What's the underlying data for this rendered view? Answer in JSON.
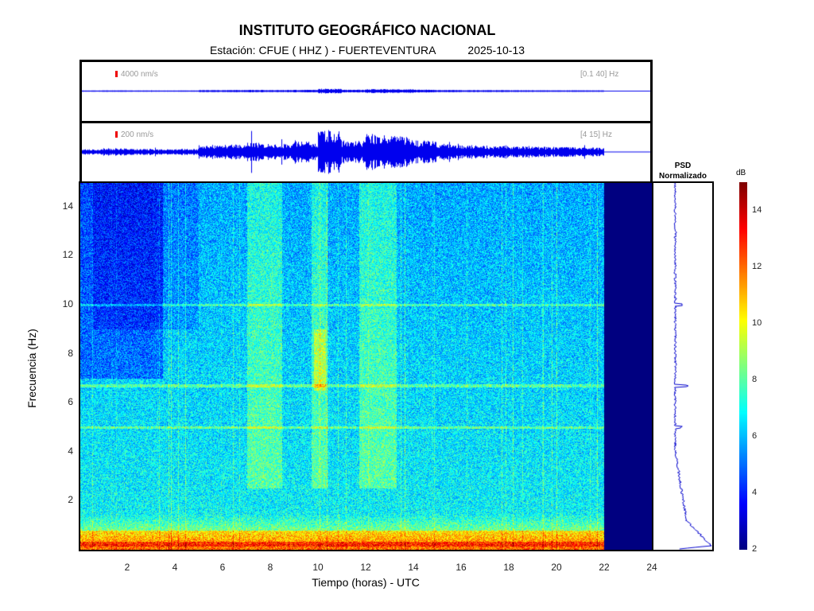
{
  "header": {
    "title": "INSTITUTO GEOGRÁFICO NACIONAL",
    "station_label": "Estación:  CFUE ( HHZ ) - FUERTEVENTURA",
    "date": "2025-10-13"
  },
  "traces": [
    {
      "scale": "4000 nm/s",
      "band": "[0.1 40] Hz"
    },
    {
      "scale": "200 nm/s",
      "band": "[4 15] Hz"
    }
  ],
  "psd": {
    "title_line1": "PSD",
    "title_line2": "Normalizado"
  },
  "colorbar": {
    "label": "dB",
    "min": 2,
    "max": 15,
    "ticks": [
      "2",
      "4",
      "6",
      "8",
      "10",
      "12",
      "14"
    ]
  },
  "colors": {
    "trace": "#0000ee",
    "scale_bar": "#ee0000",
    "nodata": "#000080"
  },
  "chart_data": {
    "type": "heatmap",
    "title": "INSTITUTO GEOGRÁFICO NACIONAL",
    "xlabel": "Tiempo (horas) - UTC",
    "ylabel": "Frecuencia  (Hz)",
    "xlim": [
      0,
      24
    ],
    "ylim": [
      0,
      15
    ],
    "xticks": [
      "2",
      "4",
      "6",
      "8",
      "10",
      "12",
      "14",
      "16",
      "18",
      "20",
      "22",
      "24"
    ],
    "yticks": [
      "2",
      "4",
      "6",
      "8",
      "10",
      "12",
      "14"
    ],
    "data_end_hour": 22,
    "spectral_lines_hz": [
      5.0,
      6.7,
      10.0
    ],
    "activity_windows_hours": [
      [
        9.7,
        10.4
      ],
      [
        11.7,
        13.3
      ],
      [
        7,
        8.5
      ]
    ],
    "trace_envelope_hourly": [
      0.1,
      0.15,
      0.12,
      0.1,
      0.12,
      0.3,
      0.35,
      0.4,
      0.35,
      0.45,
      1.0,
      0.5,
      0.8,
      0.7,
      0.5,
      0.35,
      0.3,
      0.28,
      0.25,
      0.22,
      0.2,
      0.18
    ]
  }
}
